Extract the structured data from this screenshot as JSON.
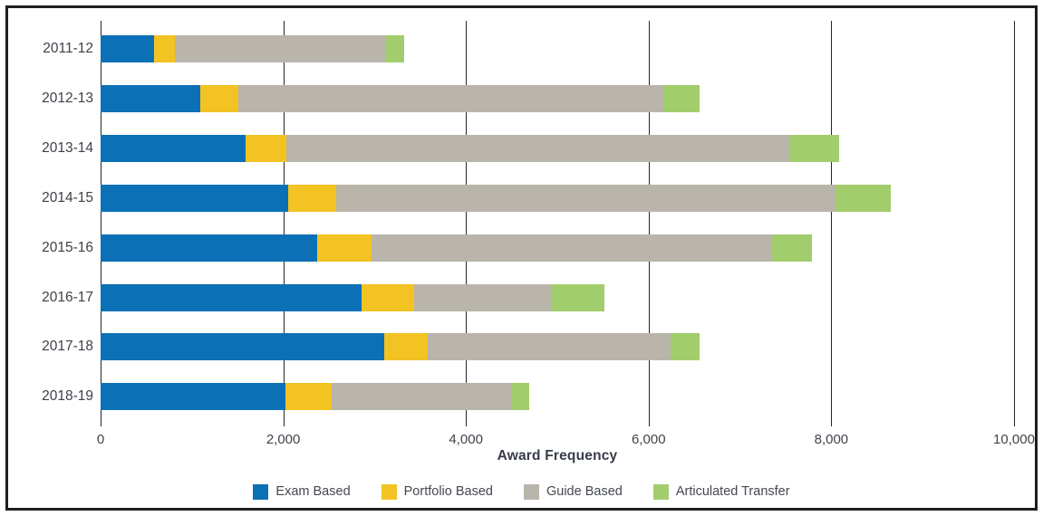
{
  "chart_data": {
    "type": "bar",
    "variant": "horizontal-stacked",
    "categories": [
      "2011-12",
      "2012-13",
      "2013-14",
      "2014-15",
      "2015-16",
      "2016-17",
      "2017-18",
      "2018-19"
    ],
    "series": [
      {
        "name": "Exam Based",
        "color": "#0c70b6",
        "values": [
          590,
          1090,
          1590,
          2050,
          2370,
          2860,
          3110,
          2020
        ]
      },
      {
        "name": "Portfolio Based",
        "color": "#f2c322",
        "values": [
          220,
          420,
          440,
          530,
          600,
          570,
          470,
          510
        ]
      },
      {
        "name": "Guide Based",
        "color": "#b9b5aa",
        "values": [
          2310,
          4650,
          5520,
          5470,
          4380,
          1500,
          2660,
          1970
        ]
      },
      {
        "name": "Articulated Transfer",
        "color": "#a2cd6c",
        "values": [
          200,
          400,
          540,
          600,
          440,
          590,
          320,
          190
        ]
      }
    ],
    "xlabel": "Award Frequency",
    "ylabel": "",
    "title": "",
    "xlim": [
      0,
      10000
    ],
    "tick_values": [
      0,
      2000,
      4000,
      6000,
      8000,
      10000
    ],
    "tick_labels": [
      "0",
      "2,000",
      "4,000",
      "6,000",
      "8,000",
      "10,000"
    ],
    "grid": "vertical-lines",
    "legend_position": "bottom-center"
  },
  "colors": {
    "frame_border": "#1f1f1f",
    "gridline": "#262626",
    "label_text": "#3d4148",
    "axis_title_text": "#363c47",
    "legend_text": "#43474e",
    "background": "#ffffff"
  }
}
